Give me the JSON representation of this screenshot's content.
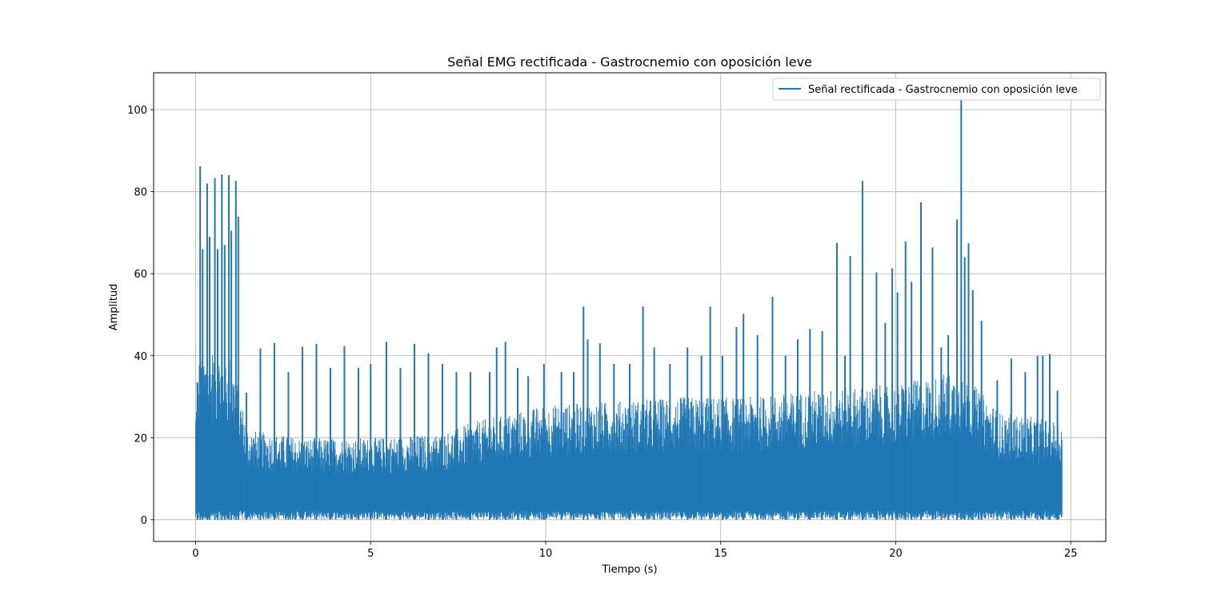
{
  "chart_data": {
    "type": "line",
    "title": "Señal EMG rectificada - Gastrocnemio con oposición leve",
    "xlabel": "Tiempo (s)",
    "ylabel": "Amplitud",
    "xlim": [
      -1.2,
      26.0
    ],
    "ylim": [
      -5.3,
      109.0
    ],
    "xticks": [
      0,
      5,
      10,
      15,
      20,
      25
    ],
    "yticks": [
      0,
      20,
      40,
      60,
      80,
      100
    ],
    "xtick_labels": [
      "0",
      "5",
      "10",
      "15",
      "20",
      "25"
    ],
    "ytick_labels": [
      "0",
      "20",
      "40",
      "60",
      "80",
      "100"
    ],
    "grid": true,
    "legend_position": "upper-right",
    "colors": {
      "series": "#1f77b4",
      "grid": "#b0b0b0",
      "axes": "#000000"
    },
    "series": [
      {
        "name": "Señal rectificada - Gastrocnemio con oposición leve",
        "x_range": [
          0,
          24.75
        ],
        "baseline_envelope": [
          [
            0.0,
            28
          ],
          [
            0.1,
            40
          ],
          [
            0.5,
            42
          ],
          [
            1.0,
            40
          ],
          [
            1.2,
            33
          ],
          [
            1.5,
            22
          ],
          [
            3.0,
            20
          ],
          [
            5.0,
            20
          ],
          [
            7.0,
            21
          ],
          [
            8.0,
            24
          ],
          [
            9.0,
            26
          ],
          [
            10.0,
            28
          ],
          [
            12.0,
            29
          ],
          [
            14.0,
            30
          ],
          [
            16.0,
            30
          ],
          [
            18.0,
            32
          ],
          [
            20.0,
            33
          ],
          [
            21.5,
            36
          ],
          [
            22.0,
            35
          ],
          [
            23.0,
            26
          ],
          [
            24.0,
            25
          ],
          [
            24.75,
            24
          ]
        ],
        "peaks": [
          [
            0.05,
            33.5
          ],
          [
            0.13,
            86.2
          ],
          [
            0.2,
            66.0
          ],
          [
            0.33,
            82.0
          ],
          [
            0.4,
            69.0
          ],
          [
            0.55,
            83.3
          ],
          [
            0.63,
            66.0
          ],
          [
            0.75,
            84.2
          ],
          [
            0.83,
            67.0
          ],
          [
            0.95,
            84.0
          ],
          [
            1.02,
            70.5
          ],
          [
            1.15,
            82.6
          ],
          [
            1.22,
            73.9
          ],
          [
            1.45,
            31.0
          ],
          [
            1.85,
            41.8
          ],
          [
            2.25,
            43.1
          ],
          [
            2.65,
            36.0
          ],
          [
            3.05,
            42.2
          ],
          [
            3.45,
            42.9
          ],
          [
            3.85,
            37.0
          ],
          [
            4.25,
            42.3
          ],
          [
            4.65,
            37.0
          ],
          [
            5.0,
            38.0
          ],
          [
            5.45,
            43.4
          ],
          [
            5.85,
            37.0
          ],
          [
            6.25,
            42.9
          ],
          [
            6.65,
            40.6
          ],
          [
            7.05,
            38.0
          ],
          [
            7.45,
            36.0
          ],
          [
            7.85,
            36.0
          ],
          [
            8.4,
            36.0
          ],
          [
            8.6,
            42.0
          ],
          [
            8.85,
            43.4
          ],
          [
            9.2,
            37.0
          ],
          [
            9.5,
            35.0
          ],
          [
            9.95,
            38.0
          ],
          [
            10.45,
            36.0
          ],
          [
            10.8,
            36.0
          ],
          [
            11.08,
            52.0
          ],
          [
            11.2,
            44.0
          ],
          [
            11.55,
            43.0
          ],
          [
            11.95,
            38.0
          ],
          [
            12.4,
            38.0
          ],
          [
            12.78,
            52.0
          ],
          [
            13.1,
            42.0
          ],
          [
            13.55,
            38.0
          ],
          [
            14.05,
            42.0
          ],
          [
            14.45,
            40.0
          ],
          [
            14.7,
            52.0
          ],
          [
            15.05,
            40.0
          ],
          [
            15.45,
            47.0
          ],
          [
            15.65,
            50.2
          ],
          [
            16.05,
            45.0
          ],
          [
            16.48,
            54.4
          ],
          [
            16.85,
            40.0
          ],
          [
            17.2,
            44.0
          ],
          [
            17.55,
            46.5
          ],
          [
            17.9,
            46.0
          ],
          [
            18.32,
            67.5
          ],
          [
            18.55,
            40.0
          ],
          [
            18.7,
            64.3
          ],
          [
            19.05,
            82.6
          ],
          [
            19.45,
            60.3
          ],
          [
            19.7,
            48.0
          ],
          [
            19.9,
            61.3
          ],
          [
            20.05,
            55.4
          ],
          [
            20.28,
            67.9
          ],
          [
            20.45,
            58.0
          ],
          [
            20.72,
            77.4
          ],
          [
            21.05,
            66.4
          ],
          [
            21.3,
            42.0
          ],
          [
            21.5,
            45.0
          ],
          [
            21.75,
            73.2
          ],
          [
            21.87,
            103.0
          ],
          [
            21.97,
            64.0
          ],
          [
            22.08,
            67.4
          ],
          [
            22.2,
            56.0
          ],
          [
            22.45,
            48.5
          ],
          [
            22.9,
            34.0
          ],
          [
            23.3,
            39.3
          ],
          [
            23.7,
            36.0
          ],
          [
            24.05,
            40.0
          ],
          [
            24.2,
            40.0
          ],
          [
            24.4,
            40.4
          ],
          [
            24.62,
            31.5
          ]
        ]
      }
    ]
  }
}
